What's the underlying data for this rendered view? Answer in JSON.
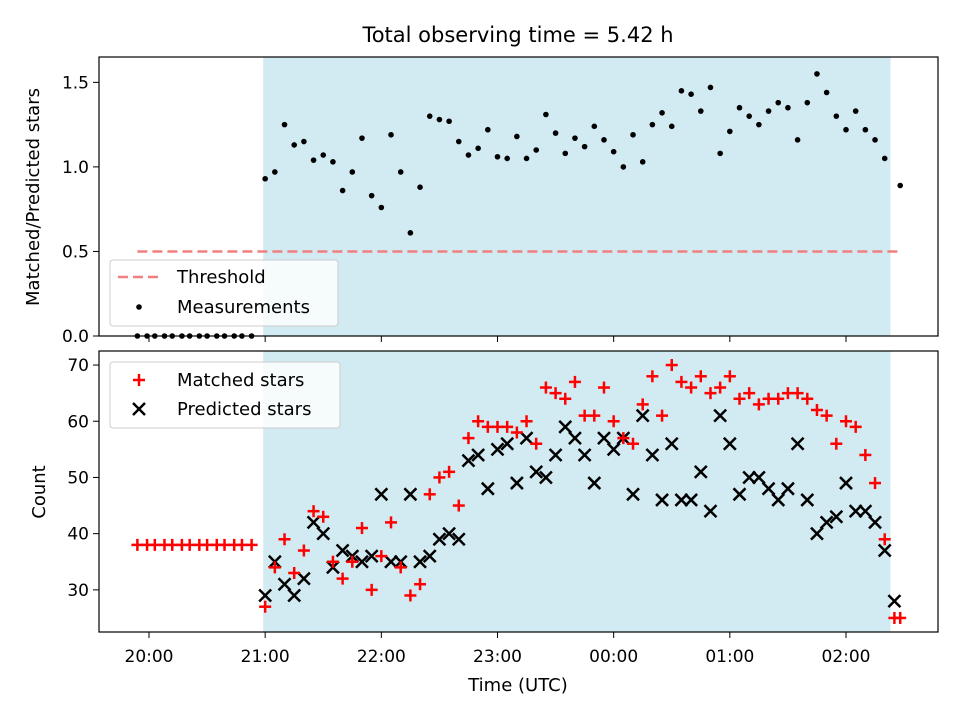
{
  "figure_title": "Total observing time = 5.42 h",
  "chart_data": [
    {
      "type": "scatter",
      "title": "Total observing time = 5.42 h",
      "ylabel": "Matched/Predicted stars",
      "xlabel": "",
      "ylim": [
        0,
        1.65
      ],
      "xlim": [
        "19:52",
        "02:38"
      ],
      "y_ticks": [
        "0.0",
        "0.5",
        "1.0",
        "1.5"
      ],
      "shaded_span": [
        "20:59",
        "02:23"
      ],
      "shade_color": "#add8e6",
      "threshold": {
        "name": "Threshold",
        "y": 0.5,
        "x_start": "19:54",
        "x_end": "02:27",
        "color": "#f08080",
        "style": "dashed"
      },
      "legend": {
        "placement": "lower-left",
        "entries": [
          "Threshold",
          "Measurements"
        ]
      },
      "series": [
        {
          "name": "Measurements",
          "marker": "dot",
          "color": "#000000",
          "x": [
            "19:54",
            "19:59",
            "20:03",
            "20:08",
            "20:12",
            "20:17",
            "20:21",
            "20:26",
            "20:30",
            "20:35",
            "20:39",
            "20:44",
            "20:48",
            "20:53",
            "21:00",
            "21:05",
            "21:10",
            "21:15",
            "21:20",
            "21:25",
            "21:30",
            "21:35",
            "21:40",
            "21:45",
            "21:50",
            "21:55",
            "22:00",
            "22:05",
            "22:10",
            "22:15",
            "22:20",
            "22:25",
            "22:30",
            "22:35",
            "22:40",
            "22:45",
            "22:50",
            "22:55",
            "23:00",
            "23:05",
            "23:10",
            "23:15",
            "23:20",
            "23:25",
            "23:30",
            "23:35",
            "23:40",
            "23:45",
            "23:50",
            "23:55",
            "00:00",
            "00:05",
            "00:10",
            "00:15",
            "00:20",
            "00:25",
            "00:30",
            "00:35",
            "00:40",
            "00:45",
            "00:50",
            "00:55",
            "01:00",
            "01:05",
            "01:10",
            "01:15",
            "01:20",
            "01:25",
            "01:30",
            "01:35",
            "01:40",
            "01:45",
            "01:50",
            "01:55",
            "02:00",
            "02:05",
            "02:10",
            "02:15",
            "02:20",
            "02:28"
          ],
          "y": [
            0,
            0,
            0,
            0,
            0,
            0,
            0,
            0,
            0,
            0,
            0,
            0,
            0,
            0,
            0.93,
            0.97,
            1.25,
            1.13,
            1.15,
            1.04,
            1.07,
            1.03,
            0.86,
            0.97,
            1.17,
            0.83,
            0.76,
            1.19,
            0.97,
            0.61,
            0.88,
            1.3,
            1.28,
            1.27,
            1.15,
            1.07,
            1.11,
            1.22,
            1.06,
            1.05,
            1.18,
            1.05,
            1.1,
            1.31,
            1.2,
            1.08,
            1.17,
            1.12,
            1.24,
            1.16,
            1.09,
            1.0,
            1.19,
            1.03,
            1.25,
            1.32,
            1.24,
            1.45,
            1.43,
            1.33,
            1.47,
            1.08,
            1.21,
            1.35,
            1.3,
            1.25,
            1.33,
            1.38,
            1.35,
            1.16,
            1.38,
            1.55,
            1.44,
            1.3,
            1.22,
            1.33,
            1.22,
            1.16,
            1.05,
            0.89
          ]
        }
      ]
    },
    {
      "type": "scatter",
      "title": "",
      "ylabel": "Count",
      "xlabel": "Time (UTC)",
      "ylim": [
        22.5,
        72.5
      ],
      "y_ticks": [
        "30",
        "40",
        "50",
        "60",
        "70"
      ],
      "x_ticks": [
        "20:00",
        "21:00",
        "22:00",
        "23:00",
        "00:00",
        "01:00",
        "02:00"
      ],
      "legend": {
        "placement": "upper-left",
        "entries": [
          "Matched stars",
          "Predicted stars"
        ]
      },
      "series": [
        {
          "name": "Matched stars",
          "marker": "plus",
          "color": "#ff0000",
          "x": [
            "19:54",
            "19:59",
            "20:03",
            "20:08",
            "20:12",
            "20:17",
            "20:21",
            "20:26",
            "20:30",
            "20:35",
            "20:39",
            "20:44",
            "20:48",
            "20:53",
            "21:00",
            "21:05",
            "21:10",
            "21:15",
            "21:20",
            "21:25",
            "21:30",
            "21:35",
            "21:40",
            "21:45",
            "21:50",
            "21:55",
            "22:00",
            "22:05",
            "22:10",
            "22:15",
            "22:20",
            "22:25",
            "22:30",
            "22:35",
            "22:40",
            "22:45",
            "22:50",
            "22:55",
            "23:00",
            "23:05",
            "23:10",
            "23:15",
            "23:20",
            "23:25",
            "23:30",
            "23:35",
            "23:40",
            "23:45",
            "23:50",
            "23:55",
            "00:00",
            "00:05",
            "00:10",
            "00:15",
            "00:20",
            "00:25",
            "00:30",
            "00:35",
            "00:40",
            "00:45",
            "00:50",
            "00:55",
            "01:00",
            "01:05",
            "01:10",
            "01:15",
            "01:20",
            "01:25",
            "01:30",
            "01:35",
            "01:40",
            "01:45",
            "01:50",
            "01:55",
            "02:00",
            "02:05",
            "02:10",
            "02:15",
            "02:20",
            "02:25",
            "02:28"
          ],
          "y": [
            38,
            38,
            38,
            38,
            38,
            38,
            38,
            38,
            38,
            38,
            38,
            38,
            38,
            38,
            27,
            34,
            39,
            33,
            37,
            44,
            43,
            35,
            32,
            35,
            41,
            30,
            36,
            42,
            34,
            29,
            31,
            47,
            50,
            51,
            45,
            57,
            60,
            59,
            59,
            59,
            58,
            60,
            56,
            66,
            65,
            64,
            67,
            61,
            61,
            66,
            60,
            57,
            56,
            63,
            68,
            61,
            70,
            67,
            66,
            68,
            65,
            66,
            68,
            64,
            65,
            63,
            64,
            64,
            65,
            65,
            64,
            62,
            61,
            56,
            60,
            59,
            54,
            49,
            39,
            25,
            25
          ]
        },
        {
          "name": "Predicted stars",
          "marker": "x",
          "color": "#000000",
          "x": [
            "21:00",
            "21:05",
            "21:10",
            "21:15",
            "21:20",
            "21:25",
            "21:30",
            "21:35",
            "21:40",
            "21:45",
            "21:50",
            "21:55",
            "22:00",
            "22:05",
            "22:10",
            "22:15",
            "22:20",
            "22:25",
            "22:30",
            "22:35",
            "22:40",
            "22:45",
            "22:50",
            "22:55",
            "23:00",
            "23:05",
            "23:10",
            "23:15",
            "23:20",
            "23:25",
            "23:30",
            "23:35",
            "23:40",
            "23:45",
            "23:50",
            "23:55",
            "00:00",
            "00:05",
            "00:10",
            "00:15",
            "00:20",
            "00:25",
            "00:30",
            "00:35",
            "00:40",
            "00:45",
            "00:50",
            "00:55",
            "01:00",
            "01:05",
            "01:10",
            "01:15",
            "01:20",
            "01:25",
            "01:30",
            "01:35",
            "01:40",
            "01:45",
            "01:50",
            "01:55",
            "02:00",
            "02:05",
            "02:10",
            "02:15",
            "02:20",
            "02:25"
          ],
          "y": [
            29,
            35,
            31,
            29,
            32,
            42,
            40,
            34,
            37,
            36,
            35,
            36,
            47,
            35,
            35,
            47,
            35,
            36,
            39,
            40,
            39,
            53,
            54,
            48,
            55,
            56,
            49,
            57,
            51,
            50,
            54,
            59,
            57,
            54,
            49,
            57,
            55,
            57,
            47,
            61,
            54,
            46,
            56,
            46,
            46,
            51,
            44,
            61,
            56,
            47,
            50,
            50,
            48,
            46,
            48,
            56,
            46,
            40,
            42,
            43,
            49,
            44,
            44,
            42,
            37,
            28
          ]
        }
      ]
    }
  ]
}
